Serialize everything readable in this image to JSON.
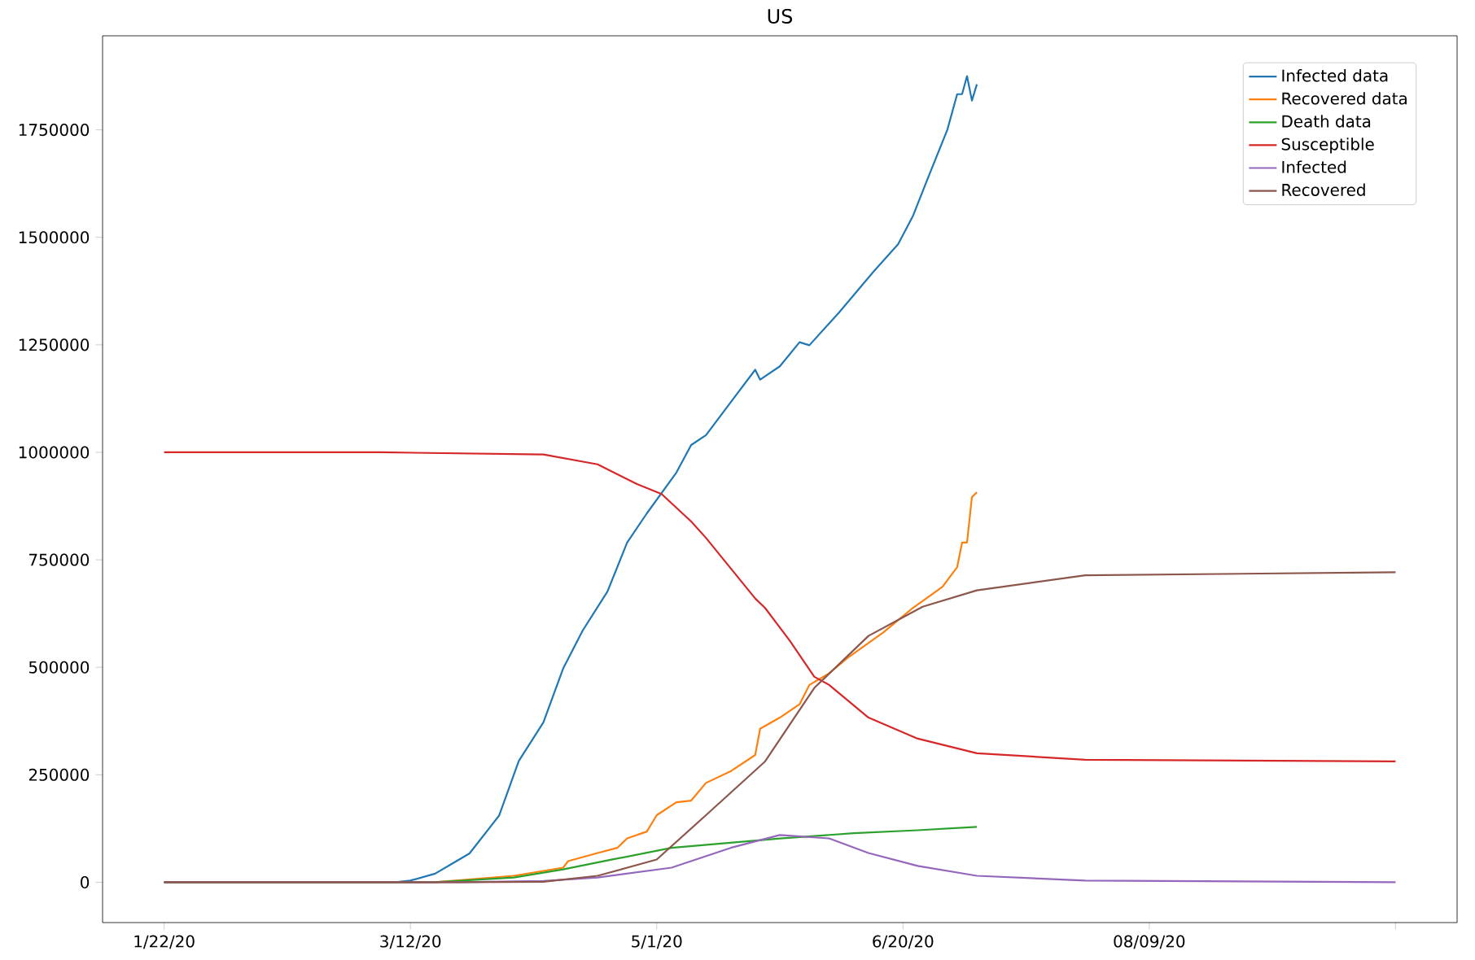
{
  "chart_data": {
    "type": "line",
    "title": "US",
    "xlim": [
      "2020-01-09T12:00",
      "2020-10-10T12:00"
    ],
    "ylim": [
      -93750,
      1968750
    ],
    "xticks": [
      {
        "value": "2020-01-22",
        "label": "1/22/20"
      },
      {
        "value": "2020-03-12",
        "label": "3/12/20"
      },
      {
        "value": "2020-05-01",
        "label": "5/1/20"
      },
      {
        "value": "2020-06-20",
        "label": "6/20/20"
      },
      {
        "value": "2020-08-09",
        "label": "08/09/20"
      },
      {
        "value": "2020-09-28",
        "label": null
      }
    ],
    "yticks": [
      0,
      250000,
      500000,
      750000,
      1000000,
      1250000,
      1500000,
      1750000
    ],
    "legend": "top right",
    "series": [
      {
        "name": "Infected data",
        "color": "#1f77b4",
        "x": [
          "2020-01-22",
          "2020-03-09",
          "2020-03-12",
          "2020-03-17",
          "2020-03-20",
          "2020-03-24",
          "2020-03-30",
          "2020-04-03",
          "2020-04-08",
          "2020-04-12",
          "2020-04-16",
          "2020-04-21",
          "2020-04-25",
          "2020-04-29",
          "2020-05-05",
          "2020-05-08",
          "2020-05-11",
          "2020-05-16",
          "2020-05-21",
          "2020-05-22",
          "2020-05-26",
          "2020-05-30",
          "2020-06-01",
          "2020-06-07",
          "2020-06-14",
          "2020-06-19",
          "2020-06-22",
          "2020-06-25",
          "2020-06-29",
          "2020-07-01",
          "2020-07-02",
          "2020-07-03",
          "2020-07-04",
          "2020-07-05"
        ],
        "values": [
          0,
          0,
          4000,
          20000,
          40000,
          67000,
          155000,
          282000,
          372000,
          497000,
          586000,
          676000,
          790000,
          858000,
          953000,
          1017000,
          1040000,
          1116000,
          1192000,
          1169000,
          1200000,
          1256000,
          1249000,
          1325000,
          1420000,
          1484000,
          1549000,
          1636000,
          1750000,
          1833000,
          1833000,
          1875000,
          1818000,
          1856000
        ]
      },
      {
        "name": "Recovered data",
        "color": "#ff7f0e",
        "x": [
          "2020-01-22",
          "2020-03-17",
          "2020-04-02",
          "2020-04-12",
          "2020-04-13",
          "2020-04-19",
          "2020-04-23",
          "2020-04-25",
          "2020-04-29",
          "2020-05-01",
          "2020-05-05",
          "2020-05-08",
          "2020-05-11",
          "2020-05-16",
          "2020-05-21",
          "2020-05-22",
          "2020-05-26",
          "2020-05-30",
          "2020-06-01",
          "2020-06-05",
          "2020-06-09",
          "2020-06-16",
          "2020-06-22",
          "2020-06-28",
          "2020-07-01",
          "2020-07-02",
          "2020-07-03",
          "2020-07-04",
          "2020-07-05"
        ],
        "values": [
          0,
          0,
          15000,
          34000,
          49000,
          68000,
          80000,
          102000,
          118000,
          156000,
          186000,
          190000,
          231000,
          258000,
          296000,
          357000,
          383000,
          414000,
          459000,
          486000,
          524000,
          581000,
          638000,
          687000,
          733000,
          790000,
          790000,
          896000,
          907000
        ]
      },
      {
        "name": "Death data",
        "color": "#2ca02c",
        "x": [
          "2020-01-22",
          "2020-03-17",
          "2020-04-02",
          "2020-04-12",
          "2020-04-22",
          "2020-05-04",
          "2020-05-15",
          "2020-05-26",
          "2020-06-10",
          "2020-06-23",
          "2020-07-05"
        ],
        "values": [
          0,
          0,
          11000,
          30000,
          53000,
          80000,
          91000,
          102000,
          114000,
          121000,
          129000
        ]
      },
      {
        "name": "Susceptible",
        "color": "#d62728",
        "x": [
          "2020-01-22",
          "2020-03-06",
          "2020-04-08",
          "2020-04-19",
          "2020-04-27",
          "2020-05-02",
          "2020-05-08",
          "2020-05-11",
          "2020-05-21",
          "2020-05-23",
          "2020-05-28",
          "2020-06-02",
          "2020-06-05",
          "2020-06-13",
          "2020-06-23",
          "2020-07-05",
          "2020-07-27",
          "2020-09-28"
        ],
        "values": [
          1000000,
          1000000,
          995000,
          972000,
          926000,
          903000,
          839000,
          801000,
          660000,
          638000,
          562000,
          478000,
          459000,
          383000,
          334000,
          300000,
          285000,
          281000
        ]
      },
      {
        "name": "Infected",
        "color": "#9467bd",
        "x": [
          "2020-01-22",
          "2020-03-22",
          "2020-04-08",
          "2020-04-19",
          "2020-05-04",
          "2020-05-16",
          "2020-05-26",
          "2020-06-05",
          "2020-06-13",
          "2020-06-23",
          "2020-07-05",
          "2020-07-27",
          "2020-09-28"
        ],
        "values": [
          0,
          0,
          3000,
          11000,
          34000,
          80000,
          110000,
          102000,
          68000,
          38000,
          15000,
          4000,
          0
        ]
      },
      {
        "name": "Recovered",
        "color": "#8c564b",
        "x": [
          "2020-01-22",
          "2020-03-22",
          "2020-04-08",
          "2020-04-19",
          "2020-05-01",
          "2020-05-11",
          "2020-05-23",
          "2020-06-02",
          "2020-06-13",
          "2020-06-24",
          "2020-07-05",
          "2020-07-27",
          "2020-09-28"
        ],
        "values": [
          0,
          0,
          1000,
          15000,
          53000,
          156000,
          281000,
          452000,
          573000,
          641000,
          679000,
          714000,
          721000
        ]
      }
    ]
  }
}
